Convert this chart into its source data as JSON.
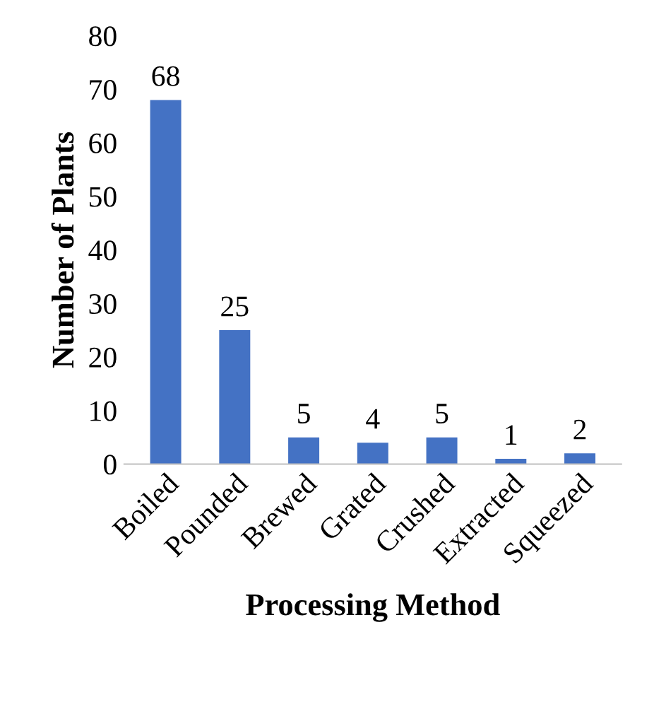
{
  "chart_data": {
    "type": "bar",
    "xlabel": "Processing Method",
    "ylabel": "Number of Plants",
    "categories": [
      "Boiled",
      "Pounded",
      "Brewed",
      "Grated",
      "Crushed",
      "Extracted",
      "Squeezed"
    ],
    "values": [
      68,
      25,
      5,
      4,
      5,
      1,
      2
    ],
    "color": "#4472c4",
    "ylim": [
      0,
      80
    ],
    "yticks": [
      0,
      10,
      20,
      30,
      40,
      50,
      60,
      70,
      80
    ],
    "grid": false,
    "data_labels": true
  }
}
